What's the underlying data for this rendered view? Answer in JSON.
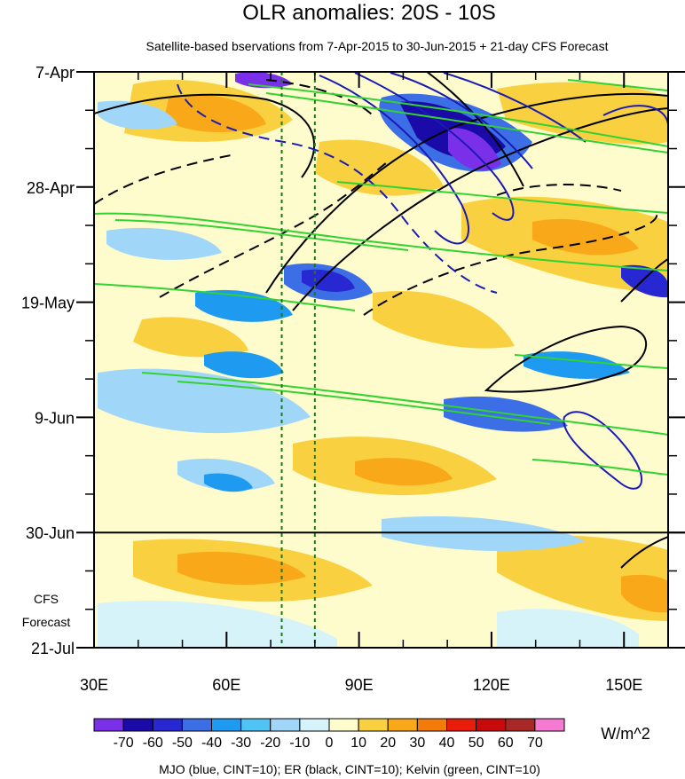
{
  "chart_data": {
    "type": "heatmap",
    "title": "OLR anomalies: 20S - 10S",
    "subtitle": "Satellite-based bservations from 7-Apr-2015 to 30-Jun-2015 + 21-day CFS Forecast",
    "x_axis": {
      "range": [
        30,
        160
      ],
      "ticks": [
        30,
        60,
        90,
        120,
        150
      ],
      "tick_labels": [
        "30E",
        "60E",
        "90E",
        "120E",
        "150E"
      ]
    },
    "y_axis": {
      "range": [
        "2015-04-07",
        "2015-07-21"
      ],
      "inverted": true,
      "ticks": [
        "2015-04-07",
        "2015-04-28",
        "2015-05-19",
        "2015-06-09",
        "2015-06-30",
        "2015-07-21"
      ],
      "tick_labels": [
        "7-Apr",
        "28-Apr",
        "19-May",
        "9-Jun",
        "30-Jun",
        "21-Jul"
      ]
    },
    "forecast_label": [
      "CFS",
      "Forecast"
    ],
    "observation_end": "2015-06-30",
    "vertical_reference_lines": [
      72.5,
      80
    ],
    "colorbar": {
      "levels": [
        -70,
        -60,
        -50,
        -40,
        -30,
        -20,
        -10,
        0,
        10,
        20,
        30,
        40,
        50,
        60,
        70
      ],
      "labels": [
        "-70",
        "-60",
        "-50",
        "-40",
        "-30",
        "-20",
        "-10",
        "0",
        "10",
        "20",
        "30",
        "40",
        "50",
        "60",
        "70"
      ],
      "colors": [
        "#7a30e8",
        "#1a0aa8",
        "#2828d2",
        "#3c6ee6",
        "#1e9bf0",
        "#50c3f5",
        "#a0d6f8",
        "#d7f3fa",
        "#fefccc",
        "#f9d040",
        "#f8a818",
        "#f47a0a",
        "#e81e0a",
        "#c80a0a",
        "#a82828",
        "#f57ad2"
      ],
      "unit": "W/m^2"
    },
    "contour_note": "MJO (blue, CINT=10); ER (black, CINT=10); Kelvin (green, CINT=10)",
    "contours": [
      {
        "type": "MJO",
        "color": "#1a1ab4",
        "cint": 10
      },
      {
        "type": "ER",
        "color": "#000000",
        "cint": 10
      },
      {
        "type": "Kelvin",
        "color": "#32d232",
        "cint": 10
      }
    ],
    "grid": false
  }
}
